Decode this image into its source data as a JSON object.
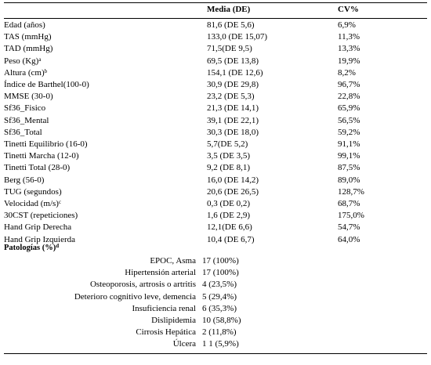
{
  "table": {
    "headers": {
      "measure": "",
      "mean": "Media (DE)",
      "cv": "CV%"
    },
    "rows": [
      {
        "label": "Edad (años)",
        "sup": "",
        "mean": "81,6 (DE 5,6)",
        "cv": "6,9%"
      },
      {
        "label": "TAS (mmHg)",
        "sup": "",
        "mean": "133,0 (DE 15,07)",
        "cv": "11,3%"
      },
      {
        "label": "TAD (mmHg)",
        "sup": "",
        "mean": "71,5(DE 9,5)",
        "cv": "13,3%"
      },
      {
        "label": "Peso (Kg)",
        "sup": "a",
        "mean": "69,5 (DE 13,8)",
        "cv": "19,9%"
      },
      {
        "label": "Altura (cm)",
        "sup": "b",
        "mean": "154,1 (DE 12,6)",
        "cv": "8,2%"
      },
      {
        "label": "Índice de Barthel(100-0)",
        "sup": "",
        "mean": "30,9 (DE 29,8)",
        "cv": "96,7%"
      },
      {
        "label": "MMSE (30-0)",
        "sup": "",
        "mean": "23,2 (DE 5,3)",
        "cv": "22,8%"
      },
      {
        "label": "Sf36_Fisico",
        "sup": "",
        "mean": "21,3 (DE 14,1)",
        "cv": "65,9%"
      },
      {
        "label": "Sf36_Mental",
        "sup": "",
        "mean": "39,1 (DE 22,1)",
        "cv": "56,5%"
      },
      {
        "label": "Sf36_Total",
        "sup": "",
        "mean": "30,3 (DE 18,0)",
        "cv": "59,2%"
      },
      {
        "label": "Tinetti Equilibrio (16-0)",
        "sup": "",
        "mean": "5,7(DE 5,2)",
        "cv": "91,1%"
      },
      {
        "label": "Tinetti Marcha (12-0)",
        "sup": "",
        "mean": "3,5 (DE 3,5)",
        "cv": "99,1%"
      },
      {
        "label": "Tinetti Total (28-0)",
        "sup": "",
        "mean": "9,2 (DE 8,1)",
        "cv": "87,5%"
      },
      {
        "label": "Berg (56-0)",
        "sup": "",
        "mean": "16,0 (DE 14,2)",
        "cv": "89,0%"
      },
      {
        "label": "TUG (segundos)",
        "sup": "",
        "mean": "20,6 (DE 26,5)",
        "cv": "128,7%"
      },
      {
        "label": "Velocidad (m/s)",
        "sup": "c",
        "mean": "0,3 (DE 0,2)",
        "cv": "68,7%"
      },
      {
        "label": "30CST (repeticiones)",
        "sup": "",
        "mean": "1,6 (DE 2,9)",
        "cv": "175,0%"
      },
      {
        "label": "Hand Grip Derecha",
        "sup": "",
        "mean": "12,1(DE 6,6)",
        "cv": "54,7%"
      },
      {
        "label": "Hand Grip Izquierda",
        "sup": "",
        "mean": "10,4 (DE 6,7)",
        "cv": "64,0%"
      }
    ],
    "pathology_title": "Patologías (%)",
    "pathology_sup": "d",
    "pathologies": [
      {
        "label": "EPOC, Asma",
        "value": "17 (100%)"
      },
      {
        "label": "Hipertensión arterial",
        "value": "17 (100%)"
      },
      {
        "label": "Osteoporosis, artrosis o artritis",
        "value": "4 (23,5%)"
      },
      {
        "label": "Deterioro cognitivo leve, demencia",
        "value": "5 (29,4%)"
      },
      {
        "label": "Insuficiencia renal",
        "value": "6 (35,3%)"
      },
      {
        "label": "Dislipidemia",
        "value": "10 (58,8%)"
      },
      {
        "label": "Cirrosis Hepática",
        "value": "2 (11,8%)"
      },
      {
        "label": "Úlcera",
        "value": "1 1 (5,9%)"
      }
    ]
  }
}
